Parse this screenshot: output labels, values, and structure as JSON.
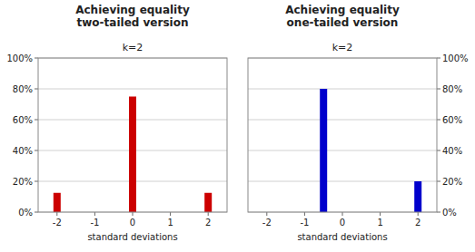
{
  "chart_data": [
    {
      "type": "bar",
      "title": "Achieving equality\ntwo-tailed version",
      "subtitle": "k=2",
      "x_label": "standard deviations",
      "x": [
        -2,
        0,
        2
      ],
      "values": [
        0.125,
        0.75,
        0.125
      ],
      "color": "#cc0000",
      "xlim": [
        -2.5,
        2.5
      ],
      "xticks": [
        -2,
        -1,
        0,
        1,
        2
      ],
      "ylim": [
        0,
        1.0
      ],
      "yticks": [
        {
          "value": 0,
          "label": "0%"
        },
        {
          "value": 0.2,
          "label": "20%"
        },
        {
          "value": 0.4,
          "label": "40%"
        },
        {
          "value": 0.6,
          "label": "60%"
        },
        {
          "value": 0.8,
          "label": "80%"
        },
        {
          "value": 1.0,
          "label": "100%"
        }
      ],
      "grid": true
    },
    {
      "type": "bar",
      "title": "Achieving equality\none-tailed version",
      "subtitle": "k=2",
      "x_label": "standard deviations",
      "x": [
        -0.5,
        2
      ],
      "values": [
        0.8,
        0.2
      ],
      "color": "#0000cc",
      "xlim": [
        -2.5,
        2.5
      ],
      "xticks": [
        -2,
        -1,
        0,
        1,
        2
      ],
      "ylim": [
        0,
        1.0
      ],
      "yticks": [
        {
          "value": 0,
          "label": "0%"
        },
        {
          "value": 0.2,
          "label": "20%"
        },
        {
          "value": 0.4,
          "label": "40%"
        },
        {
          "value": 0.6,
          "label": "60%"
        },
        {
          "value": 0.8,
          "label": "80%"
        },
        {
          "value": 1.0,
          "label": "100%"
        }
      ],
      "grid": true
    }
  ]
}
